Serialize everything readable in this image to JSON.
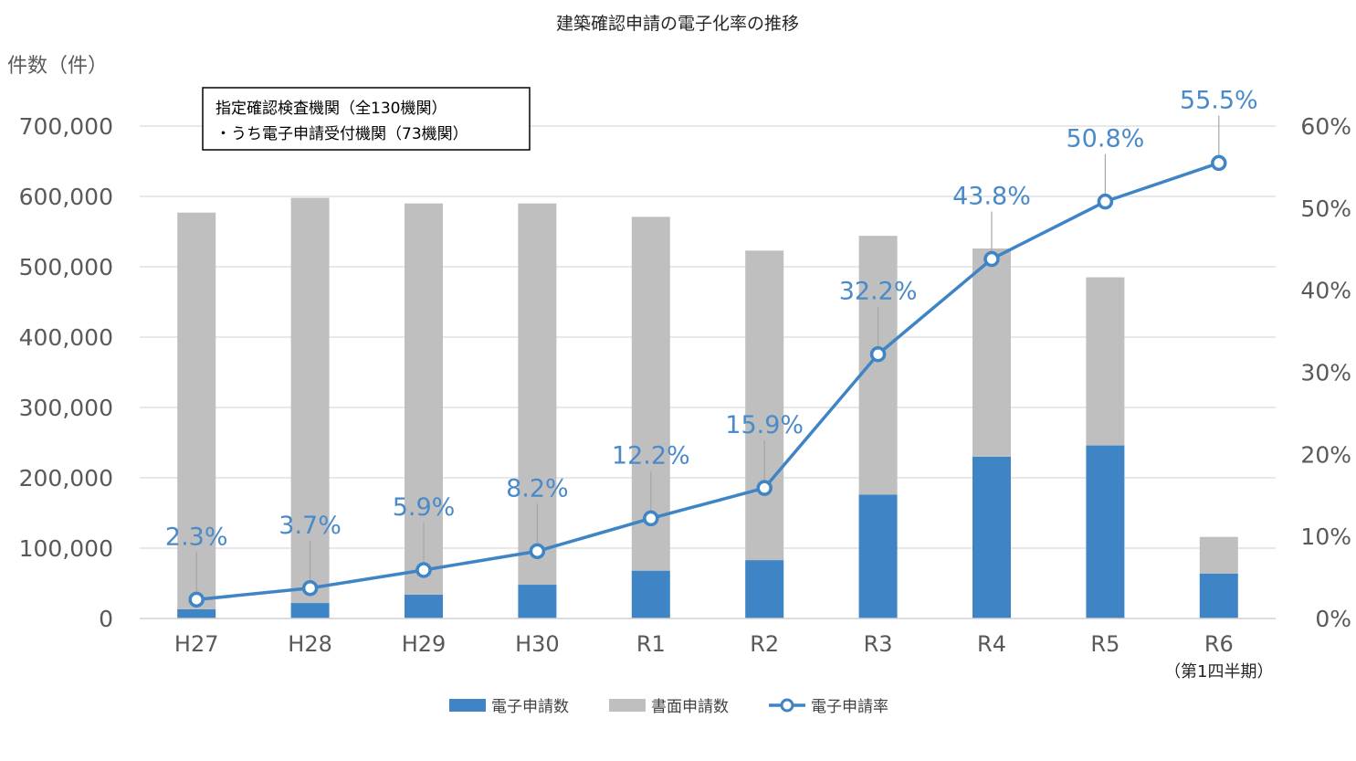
{
  "chart_data": {
    "type": "bar",
    "title": "建築確認申請の電子化率の推移",
    "ylabel": "件数（件）",
    "ylim": [
      0,
      700000
    ],
    "y2lim": [
      0,
      60
    ],
    "yticks": [
      "0",
      "100,000",
      "200,000",
      "300,000",
      "400,000",
      "500,000",
      "600,000",
      "700,000"
    ],
    "y2ticks": [
      "0%",
      "10%",
      "20%",
      "30%",
      "40%",
      "50%",
      "60%"
    ],
    "categories": [
      "H27",
      "H28",
      "H29",
      "H30",
      "R1",
      "R2",
      "R3",
      "R4",
      "R5",
      "R6"
    ],
    "category_sublabel": {
      "R6": "（第1四半期）"
    },
    "grid": true,
    "legend_position": "bottom",
    "annotation": [
      "指定確認検査機関（全130機関）",
      "・うち電子申請受付機関（73機関）"
    ],
    "series": [
      {
        "name": "電子申請数",
        "type": "bar",
        "stack": "total",
        "axis": "left",
        "color": "#3f85c6",
        "values": [
          13000,
          22000,
          34000,
          48000,
          68000,
          83000,
          176000,
          230000,
          246000,
          64000
        ]
      },
      {
        "name": "書面申請数",
        "type": "bar",
        "stack": "total",
        "axis": "left",
        "color": "#bfbfbf",
        "values": [
          564000,
          576000,
          556000,
          542000,
          503000,
          440000,
          368000,
          296000,
          239000,
          52000
        ]
      },
      {
        "name": "電子申請率",
        "type": "line",
        "axis": "right",
        "color": "#3f85c6",
        "marker": "circle",
        "values": [
          2.3,
          3.7,
          5.9,
          8.2,
          12.2,
          15.9,
          32.2,
          43.8,
          50.8,
          55.5
        ],
        "labels": [
          "2.3%",
          "3.7%",
          "5.9%",
          "8.2%",
          "12.2%",
          "15.9%",
          "32.2%",
          "43.8%",
          "50.8%",
          "55.5%"
        ]
      }
    ]
  }
}
